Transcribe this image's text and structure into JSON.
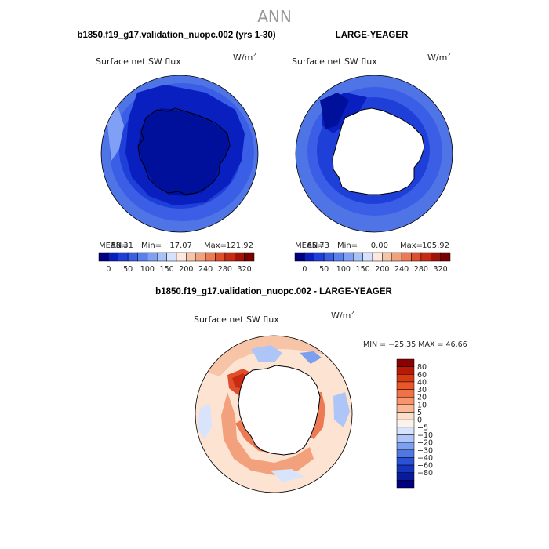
{
  "page": {
    "season": "ANN"
  },
  "panels": [
    {
      "title": "b1850.f19_g17.validation_nuopc.002 (yrs 1-30)",
      "variable": "Surface net SW flux",
      "units": "W/m",
      "units_sup": "2",
      "stats": {
        "mean_label": "MEAN=",
        "mean": "58.31",
        "min_label": "Min=",
        "min": "17.07",
        "max_label": "Max=",
        "max": "121.92"
      }
    },
    {
      "title": "LARGE-YEAGER",
      "variable": "Surface net SW flux",
      "units": "W/m",
      "units_sup": "2",
      "stats": {
        "mean_label": "MEAN=",
        "mean": "65.73",
        "min_label": "Min=",
        "min": "0.00",
        "max_label": "Max=",
        "max": "105.92"
      }
    }
  ],
  "diff_panel": {
    "title": "b1850.f19_g17.validation_nuopc.002 - LARGE-YEAGER",
    "variable": "Surface net SW flux",
    "units": "W/m",
    "units_sup": "2",
    "stats_text": "MIN = −25.35 MAX =  46.66"
  },
  "chart_data": [
    {
      "type": "heatmap",
      "title": "b1850.f19_g17.validation_nuopc.002 (yrs 1-30)",
      "subtitle": "Surface net SW flux",
      "units": "W/m2",
      "projection": "south polar stereographic",
      "mean": 58.31,
      "min": 17.07,
      "max": 121.92,
      "colorbar": {
        "tick_labels": [
          "0",
          "50",
          "100",
          "150",
          "200",
          "240",
          "280",
          "320"
        ],
        "colors": [
          "#000080",
          "#0a1fbf",
          "#1f3fd9",
          "#3a5ee6",
          "#5a7fef",
          "#7fa0f5",
          "#a8c2fa",
          "#d6e2fd",
          "#fce8dc",
          "#f8c4a8",
          "#f3a07c",
          "#ec7a54",
          "#e04f2c",
          "#c82a12",
          "#a31207",
          "#7a0000"
        ]
      }
    },
    {
      "type": "heatmap",
      "title": "LARGE-YEAGER",
      "subtitle": "Surface net SW flux",
      "units": "W/m2",
      "projection": "south polar stereographic",
      "mean": 65.73,
      "min": 0.0,
      "max": 105.92,
      "colorbar": {
        "tick_labels": [
          "0",
          "50",
          "100",
          "150",
          "200",
          "240",
          "280",
          "320"
        ],
        "colors": [
          "#000080",
          "#0a1fbf",
          "#1f3fd9",
          "#3a5ee6",
          "#5a7fef",
          "#7fa0f5",
          "#a8c2fa",
          "#d6e2fd",
          "#fce8dc",
          "#f8c4a8",
          "#f3a07c",
          "#ec7a54",
          "#e04f2c",
          "#c82a12",
          "#a31207",
          "#7a0000"
        ]
      }
    },
    {
      "type": "heatmap",
      "title": "b1850.f19_g17.validation_nuopc.002 - LARGE-YEAGER",
      "subtitle": "Surface net SW flux",
      "units": "W/m2",
      "projection": "south polar stereographic",
      "min": -25.35,
      "max": 46.66,
      "colorbar": {
        "orientation": "vertical",
        "tick_labels": [
          "80",
          "60",
          "40",
          "30",
          "20",
          "10",
          "5",
          "0",
          "−5",
          "−10",
          "−20",
          "−30",
          "−40",
          "−60",
          "−80"
        ],
        "colors": [
          "#8b0000",
          "#b81a08",
          "#d83a14",
          "#ea5628",
          "#f37146",
          "#f8946c",
          "#fbb896",
          "#fde0cc",
          "#fbf3ea",
          "#d8e4fb",
          "#adc6f7",
          "#7c9ff0",
          "#4f78e6",
          "#2a52d6",
          "#1434c0",
          "#0a1a9c",
          "#000080"
        ]
      }
    }
  ]
}
